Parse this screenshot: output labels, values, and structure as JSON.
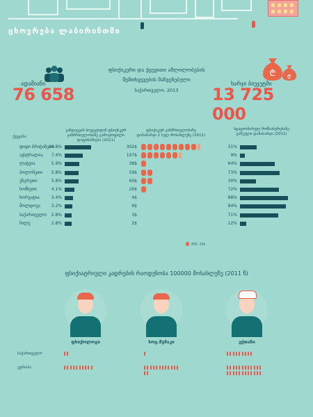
{
  "banner": {
    "title": "ცხოვრება ლაბირინთში"
  },
  "stats": {
    "left_label": "ადამიანი",
    "left_value": "76 658",
    "center_title_line1": "ფსიქიკური და ქცევითი აშლილობების",
    "center_title_line2": "შემთხვევების მაჩვენებელი",
    "center_source": "საქართველო, 2013",
    "right_label": "ხარჯი ბიუჯეტში",
    "right_value": "13 725 000"
  },
  "columns": {
    "country": "ქვეყანა",
    "col1": "ჯანდაცვის ბიუჯეტიდან ფსიქიკურ ჯანმრთელობაზე გამოყოფილი დაფინანსება (2011)",
    "col2": "ფსიქიკურ ჯანმრთელობაზე დანახარჯი 1 სულ მოსახლეზე (2011)",
    "col3": "სტაციონარულ მომსახურებაზე გაწეული დანახარჯი (2011)"
  },
  "rows": [
    {
      "name": "დიდი ბრიტანეთი",
      "pct1": "10.8%",
      "val2": "302$",
      "bags": 9.5,
      "pct3": "31%"
    },
    {
      "name": "ავსტრალია",
      "pct1": "7.4%",
      "val2": "197$",
      "bags": 6.5,
      "pct3": "9%"
    },
    {
      "name": "ლატვია",
      "pct1": "5.9%",
      "val2": "38$",
      "bags": 1,
      "pct3": "64%"
    },
    {
      "name": "პოლონეთი",
      "pct1": "5.8%",
      "val2": "59$",
      "bags": 2,
      "pct3": "73%"
    },
    {
      "name": "უნგრეთი",
      "pct1": "5.8%",
      "val2": "60$",
      "bags": 2,
      "pct3": "30%"
    },
    {
      "name": "სომხეთი",
      "pct1": "4.1%",
      "val2": "26$",
      "bags": 1,
      "pct3": "72%"
    },
    {
      "name": "ხორვატია",
      "pct1": "3.4%",
      "val2": "4$",
      "bags": 0,
      "pct3": "88%"
    },
    {
      "name": "მოლდოვა",
      "pct1": "3.2%",
      "val2": "6$",
      "bags": 0,
      "pct3": "84%"
    },
    {
      "name": "საქართველო",
      "pct1": "2.8%",
      "val2": "3$",
      "bags": 0,
      "pct3": "71%"
    },
    {
      "name": "ჩილე",
      "pct1": "2.8%",
      "val2": "2$",
      "bags": 0,
      "pct3": "12%"
    }
  ],
  "chart_data": {
    "type": "bar",
    "categories": [
      "დიდი ბრიტანეთი",
      "ავსტრალია",
      "ლატვია",
      "პოლონეთი",
      "უნგრეთი",
      "სომხეთი",
      "ხორვატია",
      "მოლდოვა",
      "საქართველო",
      "ჩილე"
    ],
    "series": [
      {
        "values": [
          10.8,
          7.4,
          5.9,
          5.8,
          5.8,
          4.1,
          3.4,
          3.2,
          2.8,
          2.8
        ]
      },
      {
        "values": [
          302,
          197,
          38,
          59,
          60,
          26,
          4,
          6,
          3,
          2
        ]
      },
      {
        "values": [
          31,
          9,
          64,
          73,
          30,
          72,
          88,
          84,
          71,
          12
        ]
      }
    ]
  },
  "legend_note": "-30$ -15$",
  "section2": {
    "title": "ფსიქიატრიული კადრების რაოდენობა 100000 მოსახლეზე (2011 წ)",
    "occupations": [
      "ფსიქოლოგი",
      "სოც.მუშაკი",
      "ექთანი"
    ],
    "countries": [
      "საქართველო",
      "ევროპა"
    ],
    "counts": [
      [
        2,
        10
      ],
      [
        1,
        14
      ],
      [
        9,
        24
      ]
    ]
  },
  "colors": {
    "bg": "#9fd8cf",
    "accent": "#e9574b",
    "dark": "#17505a",
    "bag": "#e9674a"
  }
}
